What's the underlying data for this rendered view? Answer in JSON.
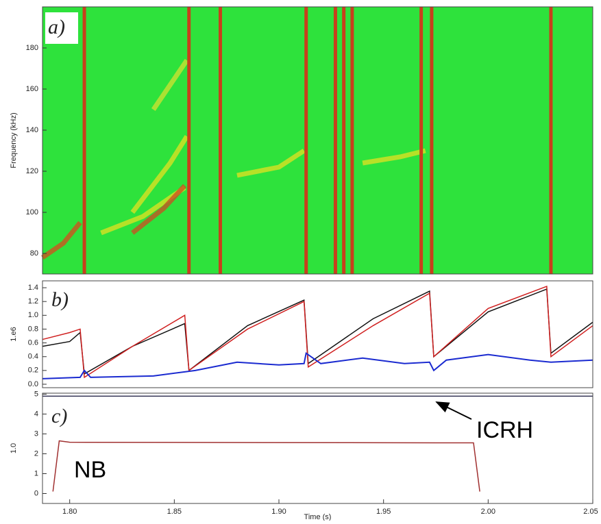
{
  "chart_data": [
    {
      "type": "spectrogram",
      "label": "a)",
      "ylabel": "Frequency (kHz)",
      "xlim": [
        1.787,
        2.05
      ],
      "ylim": [
        70,
        200
      ],
      "yticks": [
        80,
        100,
        120,
        140,
        160,
        180
      ],
      "background": "#2ee23c",
      "stripe_color": "#c8401c",
      "stripes": [
        1.807,
        1.857,
        1.872,
        1.913,
        1.927,
        1.931,
        1.935,
        1.968,
        1.973,
        2.03
      ],
      "modes": [
        {
          "color": "#d84a1c",
          "x": [
            1.787,
            1.797,
            1.805
          ],
          "values": [
            78,
            85,
            95
          ]
        },
        {
          "color": "#e6e020",
          "x": [
            1.815,
            1.835,
            1.855
          ],
          "values": [
            90,
            98,
            112
          ]
        },
        {
          "color": "#d04a20",
          "x": [
            1.83,
            1.845,
            1.855
          ],
          "values": [
            90,
            102,
            113
          ]
        },
        {
          "color": "#e6e020",
          "x": [
            1.83,
            1.848,
            1.856
          ],
          "values": [
            100,
            124,
            137
          ]
        },
        {
          "color": "#d6e030",
          "x": [
            1.84,
            1.856
          ],
          "values": [
            150,
            174
          ]
        },
        {
          "color": "#e6e020",
          "x": [
            1.88,
            1.9,
            1.912
          ],
          "values": [
            118,
            122,
            130
          ]
        },
        {
          "color": "#e6e020",
          "x": [
            1.94,
            1.958,
            1.97
          ],
          "values": [
            124,
            127,
            130
          ]
        }
      ]
    },
    {
      "type": "line",
      "label": "b)",
      "ylabel": "1.e6",
      "xlim": [
        1.787,
        2.05
      ],
      "ylim": [
        -0.05,
        1.5
      ],
      "yticks": [
        {
          "value": 0,
          "label": "0.0"
        },
        0.2,
        0.4,
        0.6,
        0.8,
        {
          "value": 1,
          "label": "1.0"
        },
        1.2,
        1.4
      ],
      "series": [
        {
          "color": "#111111",
          "x": [
            1.787,
            1.8,
            1.805,
            1.807,
            1.83,
            1.855,
            1.857,
            1.885,
            1.912,
            1.914,
            1.945,
            1.972,
            1.974,
            2.0,
            2.028,
            2.03,
            2.05
          ],
          "values": [
            0.55,
            0.62,
            0.75,
            0.15,
            0.55,
            0.88,
            0.2,
            0.85,
            1.22,
            0.3,
            0.95,
            1.35,
            0.4,
            1.05,
            1.38,
            0.45,
            0.9
          ]
        },
        {
          "color": "#d02020",
          "x": [
            1.787,
            1.8,
            1.805,
            1.807,
            1.83,
            1.855,
            1.857,
            1.885,
            1.912,
            1.914,
            1.945,
            1.972,
            1.974,
            2.0,
            2.028,
            2.03,
            2.05
          ],
          "values": [
            0.65,
            0.75,
            0.8,
            0.1,
            0.55,
            1.0,
            0.2,
            0.8,
            1.2,
            0.25,
            0.85,
            1.32,
            0.4,
            1.1,
            1.42,
            0.4,
            0.85
          ]
        },
        {
          "color": "#1a2ad0",
          "x": [
            1.787,
            1.805,
            1.807,
            1.81,
            1.84,
            1.855,
            1.86,
            1.88,
            1.9,
            1.912,
            1.913,
            1.92,
            1.94,
            1.96,
            1.972,
            1.974,
            1.98,
            2.0,
            2.02,
            2.03,
            2.05
          ],
          "values": [
            0.08,
            0.1,
            0.2,
            0.1,
            0.12,
            0.18,
            0.2,
            0.32,
            0.28,
            0.3,
            0.45,
            0.3,
            0.38,
            0.3,
            0.32,
            0.2,
            0.35,
            0.43,
            0.35,
            0.32,
            0.35
          ]
        }
      ]
    },
    {
      "type": "line",
      "label": "c)",
      "ylabel": "1.0",
      "xlabel": "Time (s)",
      "xlim": [
        1.787,
        2.05
      ],
      "ylim": [
        -0.5,
        5.05
      ],
      "yticks": [
        0,
        1,
        2,
        3,
        4,
        5
      ],
      "xticks": [
        {
          "value": 1.8,
          "label": "1.80"
        },
        {
          "value": 1.85,
          "label": "1.85"
        },
        {
          "value": 1.9,
          "label": "1.90"
        },
        {
          "value": 1.95,
          "label": "1.95"
        },
        {
          "value": 2.0,
          "label": "2.00"
        },
        {
          "value": 2.05,
          "label": "2.05"
        }
      ],
      "annotations": [
        "ICRH",
        "NB"
      ],
      "series": [
        {
          "color": "#333355",
          "x": [
            1.787,
            2.05
          ],
          "values": [
            4.9,
            4.9
          ]
        },
        {
          "color": "#a03030",
          "x": [
            1.792,
            1.795,
            1.8,
            1.993,
            1.996
          ],
          "values": [
            0.1,
            2.65,
            2.58,
            2.55,
            0.1
          ]
        }
      ]
    }
  ]
}
